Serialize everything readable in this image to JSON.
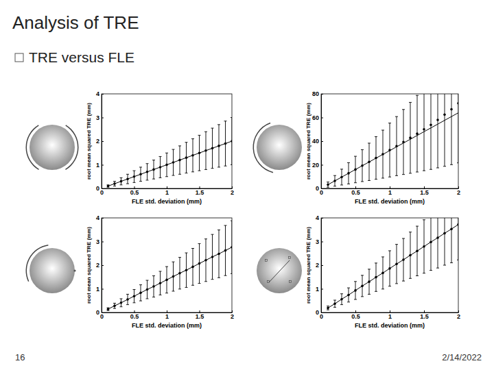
{
  "slide": {
    "title": "Analysis of TRE",
    "bullet": "TRE versus FLE",
    "page": "16",
    "date": "2/14/2022"
  },
  "chart_data": [
    {
      "type": "line",
      "x_label": "FLE std. deviation (mm)",
      "y_label": "root mean squared TRE (mm)",
      "x": [
        0.1,
        0.2,
        0.3,
        0.4,
        0.5,
        0.6,
        0.7,
        0.8,
        0.9,
        1.0,
        1.1,
        1.2,
        1.3,
        1.4,
        1.5,
        1.6,
        1.7,
        1.8,
        1.9,
        2.0
      ],
      "xlim": [
        0,
        2
      ],
      "xticks": [
        0,
        0.5,
        1,
        1.5,
        2
      ],
      "ylim": [
        0,
        4
      ],
      "yticks": [
        0,
        1,
        2,
        3,
        4
      ],
      "grid": false,
      "series": [
        {
          "type": "line",
          "line_style": "solid",
          "color": "#000000",
          "values": [
            0.1,
            0.2,
            0.3,
            0.4,
            0.5,
            0.6,
            0.7,
            0.8,
            0.9,
            1.0,
            1.1,
            1.2,
            1.3,
            1.4,
            1.5,
            1.6,
            1.7,
            1.8,
            1.9,
            2.0
          ]
        },
        {
          "type": "scatter",
          "marker": "circle",
          "color": "#000000",
          "values": [
            0.1,
            0.2,
            0.3,
            0.4,
            0.5,
            0.6,
            0.7,
            0.8,
            0.9,
            1.0,
            1.1,
            1.2,
            1.3,
            1.4,
            1.5,
            1.6,
            1.7,
            1.8,
            1.9,
            2.0
          ],
          "errors": [
            0.05,
            0.1,
            0.15,
            0.2,
            0.25,
            0.3,
            0.35,
            0.4,
            0.45,
            0.5,
            0.55,
            0.6,
            0.65,
            0.7,
            0.75,
            0.8,
            0.85,
            0.9,
            0.95,
            1.0
          ]
        }
      ]
    },
    {
      "type": "line",
      "x_label": "FLE std. deviation (mm)",
      "y_label": "root mean squared TRE (mm)",
      "x": [
        0.1,
        0.2,
        0.3,
        0.4,
        0.5,
        0.6,
        0.7,
        0.8,
        0.9,
        1.0,
        1.1,
        1.2,
        1.3,
        1.4,
        1.5,
        1.6,
        1.7,
        1.8,
        1.9,
        2.0
      ],
      "xlim": [
        0,
        2
      ],
      "xticks": [
        0,
        0.5,
        1,
        1.5,
        2
      ],
      "ylim": [
        0,
        80
      ],
      "yticks": [
        0,
        20,
        40,
        60,
        80
      ],
      "grid": false,
      "series": [
        {
          "type": "line",
          "line_style": "solid",
          "color": "#000000",
          "values": [
            3.2,
            6.4,
            9.6,
            12.8,
            16,
            19.2,
            22.4,
            25.6,
            28.8,
            32,
            35.2,
            38.4,
            41.6,
            44.8,
            48,
            51.2,
            54.4,
            57.6,
            60.8,
            64
          ]
        },
        {
          "type": "scatter",
          "marker": "circle",
          "color": "#000000",
          "values": [
            3.2,
            6.4,
            9.6,
            12.8,
            16,
            19.3,
            22.5,
            25.8,
            29,
            32.5,
            35.8,
            39.3,
            42.8,
            46.3,
            50,
            53.8,
            58,
            62.5,
            67,
            72
          ],
          "errors": [
            2.2,
            4.5,
            6.7,
            9,
            11.2,
            13.5,
            15.8,
            18,
            20.3,
            22.8,
            25,
            27.5,
            30,
            32.4,
            35,
            37.7,
            40.6,
            43.8,
            46.9,
            50.4
          ]
        }
      ]
    },
    {
      "type": "line",
      "x_label": "FLE std. deviation (mm)",
      "y_label": "root mean squared TRE (mm)",
      "x": [
        0.1,
        0.2,
        0.3,
        0.4,
        0.5,
        0.6,
        0.7,
        0.8,
        0.9,
        1.0,
        1.1,
        1.2,
        1.3,
        1.4,
        1.5,
        1.6,
        1.7,
        1.8,
        1.9,
        2.0
      ],
      "xlim": [
        0,
        2
      ],
      "xticks": [
        0,
        0.5,
        1,
        1.5,
        2
      ],
      "ylim": [
        0,
        4
      ],
      "yticks": [
        0,
        1,
        2,
        3,
        4
      ],
      "grid": false,
      "series": [
        {
          "type": "line",
          "line_style": "solid",
          "color": "#000000",
          "values": [
            0.14,
            0.28,
            0.41,
            0.55,
            0.69,
            0.83,
            0.97,
            1.1,
            1.24,
            1.38,
            1.52,
            1.66,
            1.79,
            1.93,
            2.07,
            2.21,
            2.35,
            2.48,
            2.62,
            2.76
          ]
        },
        {
          "type": "scatter",
          "marker": "circle",
          "color": "#000000",
          "values": [
            0.14,
            0.28,
            0.41,
            0.55,
            0.69,
            0.83,
            0.97,
            1.1,
            1.24,
            1.38,
            1.52,
            1.66,
            1.79,
            1.93,
            2.07,
            2.21,
            2.35,
            2.48,
            2.62,
            2.76
          ],
          "errors": [
            0.06,
            0.11,
            0.17,
            0.22,
            0.28,
            0.34,
            0.39,
            0.45,
            0.5,
            0.56,
            0.62,
            0.67,
            0.73,
            0.78,
            0.84,
            0.9,
            0.95,
            1.01,
            1.06,
            1.12
          ]
        }
      ]
    },
    {
      "type": "line",
      "x_label": "FLE std. deviation (mm)",
      "y_label": "root mean squared TRE (mm)",
      "x": [
        0.1,
        0.2,
        0.3,
        0.4,
        0.5,
        0.6,
        0.7,
        0.8,
        0.9,
        1.0,
        1.1,
        1.2,
        1.3,
        1.4,
        1.5,
        1.6,
        1.7,
        1.8,
        1.9,
        2.0
      ],
      "xlim": [
        0,
        2
      ],
      "xticks": [
        0,
        0.5,
        1,
        1.5,
        2
      ],
      "ylim": [
        0,
        4
      ],
      "yticks": [
        0,
        1,
        2,
        3,
        4
      ],
      "grid": false,
      "series": [
        {
          "type": "line",
          "line_style": "solid",
          "color": "#000000",
          "values": [
            0.19,
            0.37,
            0.56,
            0.74,
            0.93,
            1.12,
            1.3,
            1.49,
            1.67,
            1.86,
            2.05,
            2.23,
            2.42,
            2.6,
            2.79,
            2.98,
            3.16,
            3.35,
            3.53,
            3.72
          ]
        },
        {
          "type": "scatter",
          "marker": "circle",
          "color": "#000000",
          "values": [
            0.19,
            0.37,
            0.56,
            0.74,
            0.93,
            1.12,
            1.3,
            1.49,
            1.67,
            1.86,
            2.05,
            2.23,
            2.42,
            2.6,
            2.79,
            2.98,
            3.16,
            3.35,
            3.53,
            3.72
          ],
          "errors": [
            0.08,
            0.15,
            0.23,
            0.3,
            0.38,
            0.45,
            0.53,
            0.6,
            0.68,
            0.75,
            0.83,
            0.9,
            0.98,
            1.05,
            1.13,
            1.2,
            1.28,
            1.35,
            1.43,
            1.5
          ]
        }
      ]
    }
  ]
}
